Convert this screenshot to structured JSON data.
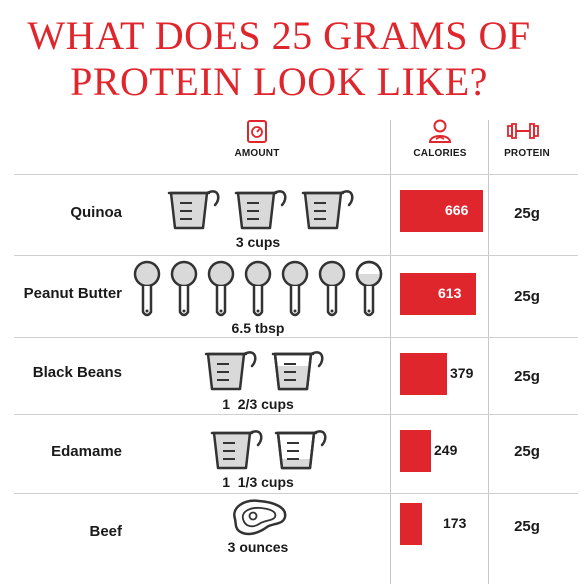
{
  "title": {
    "line1": "WHAT DOES 25 GRAMS OF",
    "line2": "PROTEIN LOOK LIKE?"
  },
  "headers": {
    "amount": "AMOUNT",
    "calories": "CALORIES",
    "protein": "PROTEIN",
    "amount_icon": "scale-icon",
    "calories_icon": "person-icon",
    "protein_icon": "dumbbell-icon"
  },
  "colors": {
    "accent": "#e0262d",
    "icon_gray": "#d9d9d9",
    "outline": "#333333"
  },
  "chart_data": {
    "type": "bar",
    "title": "WHAT DOES 25 GRAMS OF PROTEIN LOOK LIKE?",
    "categories": [
      "Quinoa",
      "Peanut Butter",
      "Black Beans",
      "Edamame",
      "Beef"
    ],
    "series": [
      {
        "name": "CALORIES",
        "values": [
          666,
          613,
          379,
          249,
          173
        ]
      }
    ],
    "protein": [
      "25g",
      "25g",
      "25g",
      "25g",
      "25g"
    ],
    "amounts": [
      "3 cups",
      "6.5 tbsp",
      "1  2/3 cups",
      "1  1/3 cups",
      "3 ounces"
    ],
    "amount_icons": [
      {
        "icon": "measuring-cup-icon",
        "count": 3
      },
      {
        "icon": "measuring-spoon-icon",
        "count": 7
      },
      {
        "icon": "measuring-cup-icon",
        "count": 2
      },
      {
        "icon": "measuring-cup-icon",
        "count": 2
      },
      {
        "icon": "steak-icon",
        "count": 1
      }
    ]
  }
}
